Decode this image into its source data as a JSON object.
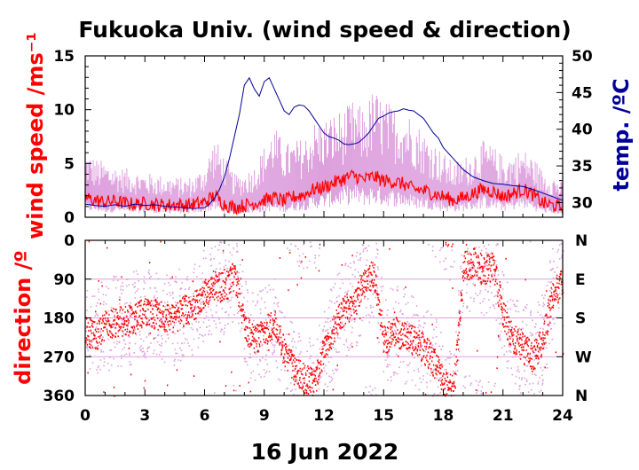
{
  "chart_data": [
    {
      "type": "line",
      "panel": "top",
      "title": "Fukuoka Univ. (wind speed & direction)",
      "ylabel": "wind speed /ms⁻¹",
      "y2label": "temp. /ºC",
      "xlim": [
        0,
        24
      ],
      "ylim": [
        0,
        15
      ],
      "y2lim": [
        28,
        50
      ],
      "x_ticks": [
        0,
        3,
        6,
        9,
        12,
        15,
        18,
        21,
        24
      ],
      "y_ticks": [
        0,
        5,
        10,
        15
      ],
      "y2_ticks": [
        30,
        35,
        40,
        45,
        50
      ],
      "colors": {
        "wind_speed": "#ff0000",
        "gust": "#dda0dd",
        "temperature": "#000099"
      },
      "series": [
        {
          "name": "",
          "axis": "left",
          "x": [
            0,
            0.5,
            1,
            1.5,
            2,
            2.5,
            3,
            3.5,
            4,
            4.5,
            5,
            5.5,
            6,
            6.5,
            7,
            7.5,
            8,
            8.5,
            9,
            9.5,
            10,
            10.5,
            11,
            11.5,
            12,
            12.5,
            13,
            13.5,
            14,
            14.5,
            15,
            15.5,
            16,
            16.5,
            17,
            17.5,
            18,
            18.5,
            19,
            19.5,
            20,
            20.5,
            21,
            21.5,
            22,
            22.5,
            23,
            23.5,
            24
          ],
          "values": [
            1.8,
            1.6,
            1.4,
            1.5,
            1.3,
            1.2,
            1.3,
            1.2,
            1.1,
            1.2,
            1.1,
            1.2,
            1.4,
            2.0,
            1.2,
            0.9,
            1.1,
            1.3,
            1.6,
            1.8,
            1.5,
            1.9,
            2.1,
            2.6,
            2.8,
            3.2,
            3.6,
            3.9,
            3.5,
            3.8,
            3.4,
            3.3,
            3.1,
            2.6,
            2.5,
            2.2,
            1.9,
            1.6,
            1.8,
            2.2,
            2.6,
            2.4,
            1.9,
            2.2,
            2.6,
            2.1,
            1.3,
            1.1,
            0.9
          ]
        },
        {
          "name": "",
          "axis": "left",
          "x": [
            0,
            0.5,
            1,
            1.5,
            2,
            2.5,
            3,
            3.5,
            4,
            4.5,
            5,
            5.5,
            6,
            6.5,
            7,
            7.5,
            8,
            8.5,
            9,
            9.5,
            10,
            10.5,
            11,
            11.5,
            12,
            12.5,
            13,
            13.5,
            14,
            14.5,
            15,
            15.5,
            16,
            16.5,
            17,
            17.5,
            18,
            18.5,
            19,
            19.5,
            20,
            20.5,
            21,
            21.5,
            22,
            22.5,
            23,
            23.5,
            24
          ],
          "values": [
            5.5,
            4.8,
            4.5,
            4.2,
            4.0,
            3.8,
            3.6,
            3.5,
            3.4,
            3.3,
            3.2,
            3.4,
            4.2,
            6.5,
            5.0,
            3.5,
            3.6,
            4.2,
            5.8,
            7.5,
            6.0,
            6.2,
            6.5,
            7.8,
            8.0,
            8.5,
            8.8,
            9.5,
            8.8,
            10.5,
            9.6,
            9.0,
            8.8,
            8.2,
            7.0,
            6.2,
            5.2,
            4.5,
            4.8,
            5.5,
            6.2,
            5.8,
            5.0,
            5.2,
            5.6,
            5.0,
            3.8,
            3.5,
            2.8
          ]
        },
        {
          "name": "",
          "axis": "right",
          "x": [
            0,
            0.5,
            1,
            1.5,
            2,
            2.5,
            3,
            3.5,
            4,
            4.5,
            5,
            5.5,
            6,
            6.25,
            6.5,
            6.75,
            7,
            7.25,
            7.5,
            7.75,
            8,
            8.25,
            8.5,
            8.75,
            9,
            9.25,
            9.5,
            9.75,
            10,
            10.25,
            10.5,
            10.75,
            11,
            11.25,
            11.5,
            11.75,
            12,
            12.25,
            12.5,
            12.75,
            13,
            13.25,
            13.5,
            13.75,
            14,
            14.25,
            14.5,
            14.75,
            15,
            15.25,
            15.5,
            15.75,
            16,
            16.25,
            16.5,
            16.75,
            17,
            17.25,
            17.5,
            17.75,
            18,
            18.5,
            19,
            19.5,
            20,
            20.5,
            21,
            21.5,
            22,
            22.5,
            23,
            23.5,
            24
          ],
          "values": [
            29.8,
            29.6,
            29.5,
            29.7,
            29.5,
            29.8,
            29.6,
            29.7,
            29.5,
            29.4,
            29.3,
            29.2,
            29.3,
            29.8,
            30.6,
            31.8,
            33.5,
            36.0,
            39.0,
            42.0,
            46.0,
            47.0,
            45.5,
            44.5,
            46.5,
            47.0,
            45.5,
            44.0,
            42.5,
            42.0,
            43.0,
            43.3,
            43.2,
            42.5,
            41.5,
            40.5,
            39.5,
            39.0,
            38.8,
            38.5,
            38.0,
            37.9,
            38.0,
            38.2,
            38.8,
            39.5,
            40.5,
            41.5,
            41.8,
            42.2,
            42.4,
            42.5,
            42.8,
            42.6,
            42.5,
            42.0,
            41.5,
            40.5,
            39.5,
            38.8,
            37.5,
            36.0,
            34.5,
            33.5,
            33.0,
            32.6,
            32.5,
            32.3,
            32.2,
            31.8,
            31.3,
            30.8,
            30.3
          ]
        }
      ]
    },
    {
      "type": "scatter",
      "panel": "bottom",
      "title": "",
      "xlabel": "16 Jun 2022",
      "ylabel": "direction /º",
      "xlim": [
        0,
        24
      ],
      "ylim": [
        0,
        360
      ],
      "y_inverted": true,
      "x_ticks": [
        0,
        3,
        6,
        9,
        12,
        15,
        18,
        21,
        24
      ],
      "y_ticks": [
        0,
        90,
        180,
        270,
        360
      ],
      "y2_ticks": [
        "N",
        "E",
        "S",
        "W",
        "N"
      ],
      "grid": true,
      "colors": {
        "direction": "#ff0000",
        "gust_direction": "#dda0dd"
      },
      "series": [
        {
          "name": "",
          "x": [
            0,
            0.5,
            1,
            1.5,
            2,
            2.5,
            3,
            3.5,
            4,
            4.5,
            5,
            5.5,
            6,
            6.5,
            7,
            7.5,
            8,
            8.5,
            9,
            9.5,
            10,
            10.5,
            11,
            11.5,
            12,
            12.5,
            13,
            13.5,
            14,
            14.5,
            15,
            15.5,
            16,
            16.5,
            17,
            17.5,
            18,
            18.5,
            19,
            19.5,
            20,
            20.5,
            21,
            21.5,
            22,
            22.5,
            23,
            23.5,
            24
          ],
          "values": [
            210,
            220,
            195,
            190,
            185,
            180,
            165,
            170,
            175,
            180,
            160,
            155,
            120,
            100,
            110,
            80,
            200,
            230,
            210,
            190,
            260,
            300,
            320,
            330,
            250,
            200,
            160,
            150,
            90,
            80,
            230,
            210,
            220,
            230,
            250,
            280,
            330,
            350,
            60,
            50,
            70,
            60,
            170,
            230,
            250,
            270,
            230,
            120,
            100
          ]
        }
      ]
    }
  ]
}
